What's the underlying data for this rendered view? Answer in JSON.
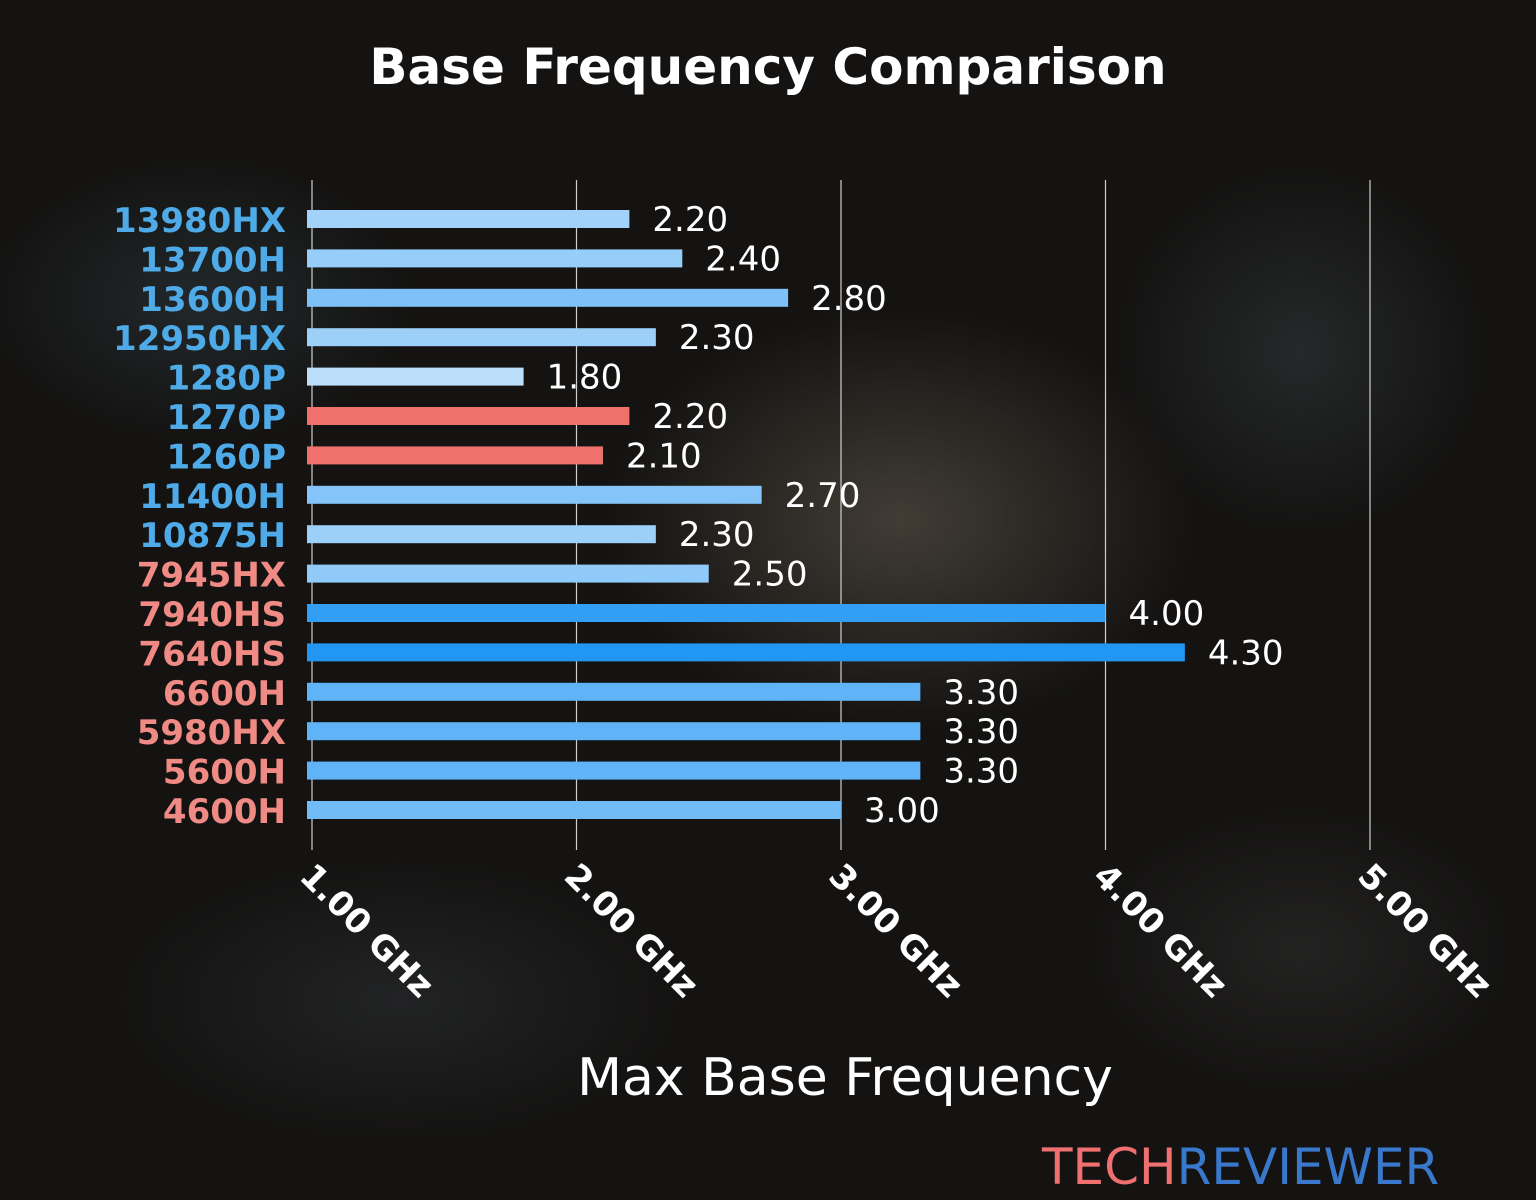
{
  "chart_data": {
    "type": "bar",
    "orientation": "horizontal",
    "title": "Base Frequency Comparison",
    "xlabel": "Max Base Frequency",
    "ylabel": "",
    "xlim": [
      1.0,
      5.0
    ],
    "xticks": [
      1.0,
      2.0,
      3.0,
      4.0,
      5.0
    ],
    "xtick_labels": [
      "1.00 GHz",
      "2.00 GHz",
      "3.00 GHz",
      "4.00 GHz",
      "5.00 GHz"
    ],
    "grid": "vertical",
    "categories": [
      "13980HX",
      "13700H",
      "13600H",
      "12950HX",
      "1280P",
      "1270P",
      "1260P",
      "11400H",
      "10875H",
      "7945HX",
      "7940HS",
      "7640HS",
      "6600H",
      "5980HX",
      "5600H",
      "4600H"
    ],
    "values": [
      2.2,
      2.4,
      2.8,
      2.3,
      1.8,
      2.2,
      2.1,
      2.7,
      2.3,
      2.5,
      4.0,
      4.3,
      3.3,
      3.3,
      3.3,
      3.0
    ],
    "value_labels": [
      "2.20",
      "2.40",
      "2.80",
      "2.30",
      "1.80",
      "2.20",
      "2.10",
      "2.70",
      "2.30",
      "2.50",
      "4.00",
      "4.30",
      "3.30",
      "3.30",
      "3.30",
      "3.00"
    ],
    "label_groups": [
      "intel",
      "intel",
      "intel",
      "intel",
      "intel",
      "intel",
      "intel",
      "intel",
      "intel",
      "amd",
      "amd",
      "amd",
      "amd",
      "amd",
      "amd",
      "amd"
    ],
    "highlighted": [
      "1270P",
      "1260P"
    ],
    "colors": {
      "intel_label": "#4faae8",
      "amd_label": "#f08a85",
      "highlight_bar": "#f0706c",
      "bar_low": "#bbdefb",
      "bar_high": "#2196f3"
    }
  },
  "watermark": {
    "part1": "TECH",
    "part2": "REVIEWER",
    "color1": "#f07070",
    "color2": "#3a78cc"
  }
}
